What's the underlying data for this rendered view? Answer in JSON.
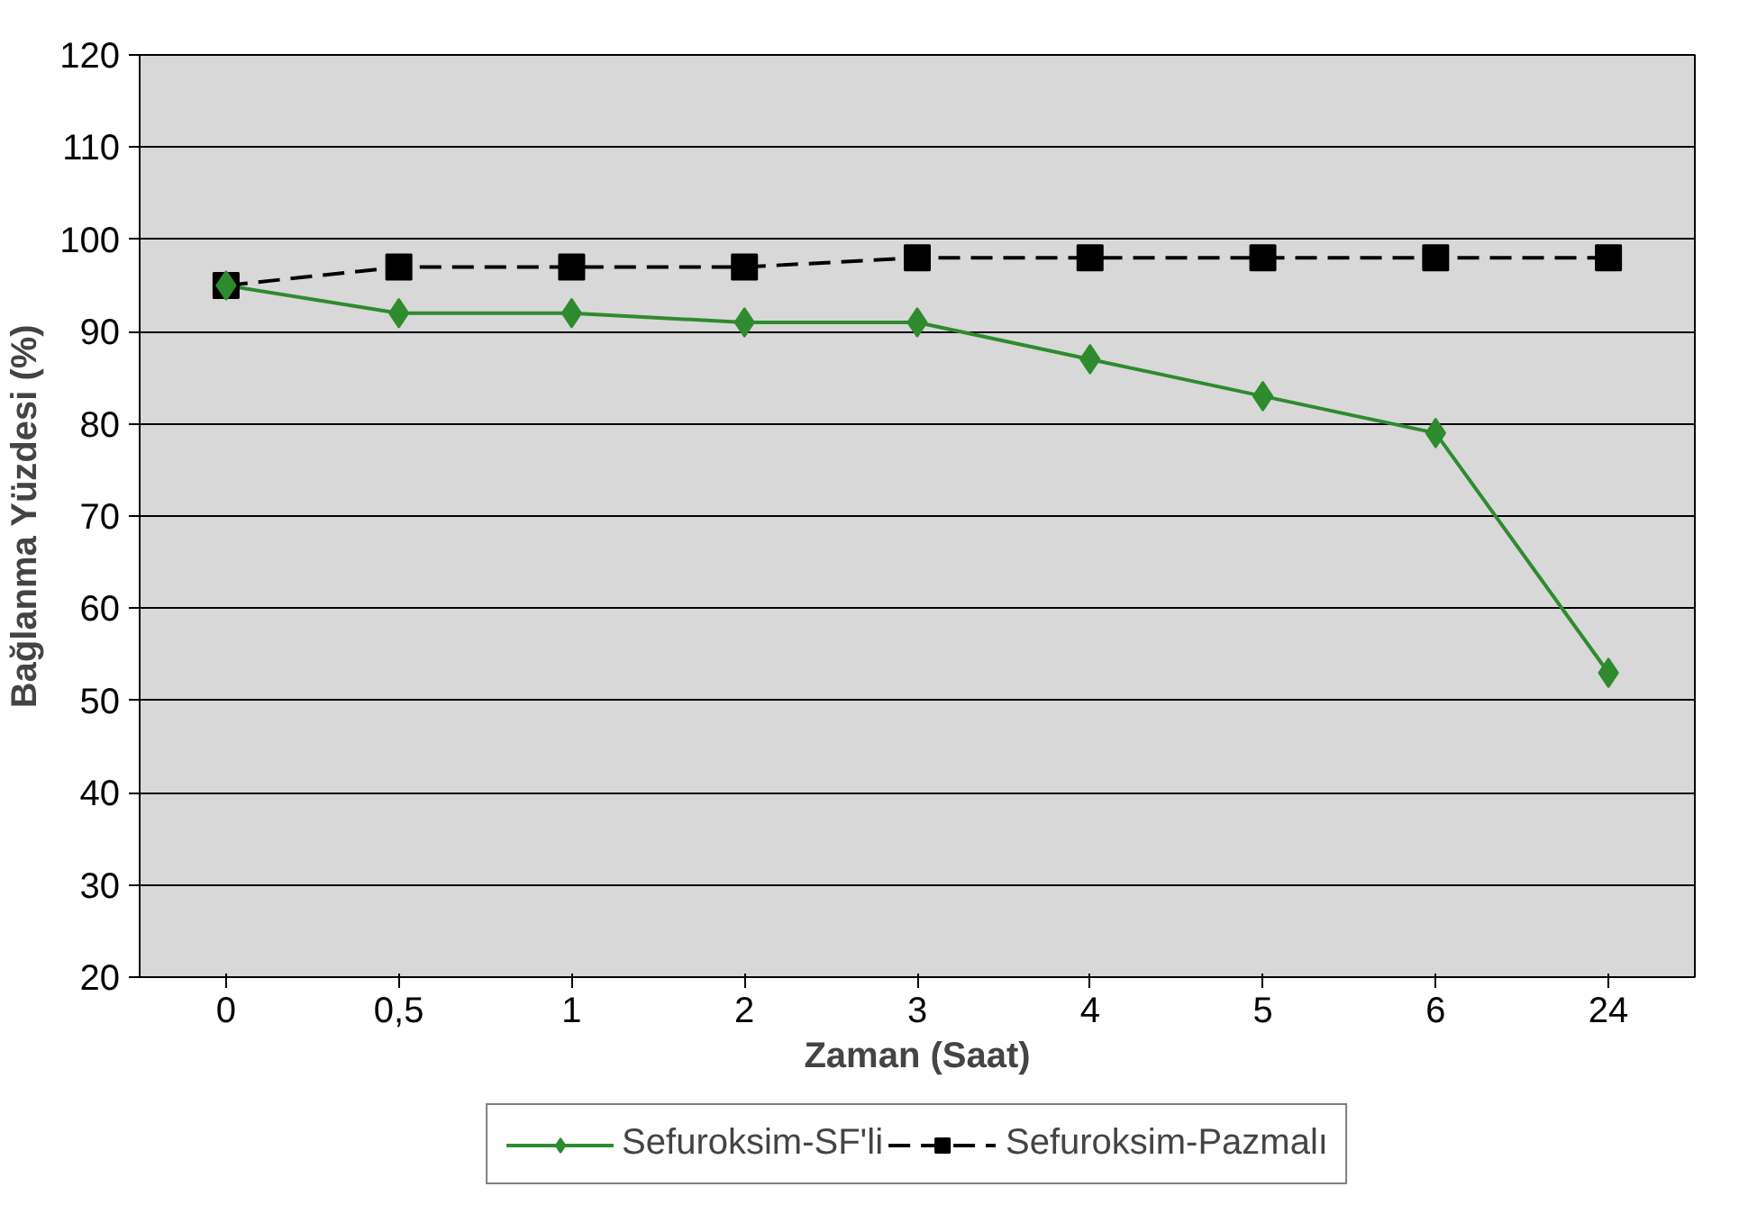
{
  "chart_data": {
    "type": "line",
    "xlabel": "Zaman (Saat)",
    "ylabel": "Bağlanma Yüzdesi (%)",
    "categories": [
      "0",
      "0,5",
      "1",
      "2",
      "3",
      "4",
      "5",
      "6",
      "24"
    ],
    "series": [
      {
        "name": "Sefuroksim-SF'li",
        "color": "#2e8b2e",
        "marker": "diamond",
        "line_style": "solid",
        "values": [
          95,
          92,
          92,
          91,
          91,
          87,
          83,
          79,
          53
        ]
      },
      {
        "name": "Sefuroksim-Pazmalı",
        "color": "#000000",
        "marker": "square",
        "line_style": "dashed",
        "values": [
          95,
          97,
          97,
          97,
          98,
          98,
          98,
          98,
          98
        ]
      }
    ],
    "ylim": [
      20,
      120
    ],
    "yticks": [
      20,
      30,
      40,
      50,
      60,
      70,
      80,
      90,
      100,
      110,
      120
    ],
    "grid": "y",
    "legend": "bottom"
  }
}
